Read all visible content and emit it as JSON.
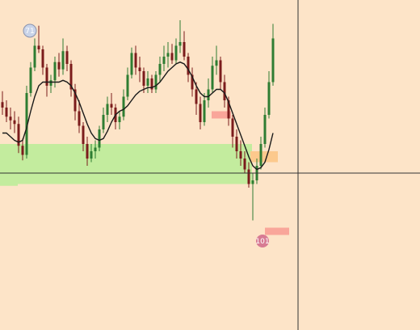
{
  "chart_data": {
    "type": "candlestick",
    "grid": false,
    "legend": "none",
    "price_range": [
      0,
      100
    ],
    "colors": {
      "background": "#fde4c8",
      "bull": "#2e7d32",
      "bear": "#7b1c1c",
      "moving_average": "#1a1a1a",
      "demand_zone": "#c3ec9e",
      "supply_zone": "#f9a69a",
      "pending_zone": "#fcc98d",
      "crosshair": "#333333",
      "marker": "#d77b93"
    },
    "candles": [
      {
        "o": 55,
        "h": 61,
        "l": 48,
        "c": 52
      },
      {
        "o": 52,
        "h": 56,
        "l": 44,
        "c": 47
      },
      {
        "o": 47,
        "h": 52,
        "l": 40,
        "c": 45
      },
      {
        "o": 45,
        "h": 50,
        "l": 38,
        "c": 43
      },
      {
        "o": 43,
        "h": 47,
        "l": 27,
        "c": 31
      },
      {
        "o": 31,
        "h": 35,
        "l": 23,
        "c": 26
      },
      {
        "o": 26,
        "h": 64,
        "l": 24,
        "c": 60
      },
      {
        "o": 60,
        "h": 77,
        "l": 58,
        "c": 74
      },
      {
        "o": 74,
        "h": 90,
        "l": 72,
        "c": 86
      },
      {
        "o": 86,
        "h": 97,
        "l": 82,
        "c": 84
      },
      {
        "o": 84,
        "h": 86,
        "l": 70,
        "c": 74
      },
      {
        "o": 74,
        "h": 76,
        "l": 58,
        "c": 64
      },
      {
        "o": 64,
        "h": 70,
        "l": 60,
        "c": 67
      },
      {
        "o": 67,
        "h": 80,
        "l": 63,
        "c": 77
      },
      {
        "o": 77,
        "h": 82,
        "l": 69,
        "c": 73
      },
      {
        "o": 73,
        "h": 90,
        "l": 70,
        "c": 83
      },
      {
        "o": 83,
        "h": 86,
        "l": 72,
        "c": 76
      },
      {
        "o": 76,
        "h": 78,
        "l": 58,
        "c": 62
      },
      {
        "o": 62,
        "h": 65,
        "l": 45,
        "c": 50
      },
      {
        "o": 50,
        "h": 56,
        "l": 38,
        "c": 42
      },
      {
        "o": 42,
        "h": 44,
        "l": 28,
        "c": 32
      },
      {
        "o": 32,
        "h": 36,
        "l": 20,
        "c": 24
      },
      {
        "o": 24,
        "h": 32,
        "l": 22,
        "c": 28
      },
      {
        "o": 28,
        "h": 34,
        "l": 24,
        "c": 30
      },
      {
        "o": 30,
        "h": 42,
        "l": 28,
        "c": 40
      },
      {
        "o": 40,
        "h": 52,
        "l": 38,
        "c": 48
      },
      {
        "o": 48,
        "h": 58,
        "l": 44,
        "c": 54
      },
      {
        "o": 54,
        "h": 60,
        "l": 48,
        "c": 52
      },
      {
        "o": 52,
        "h": 54,
        "l": 40,
        "c": 44
      },
      {
        "o": 44,
        "h": 50,
        "l": 40,
        "c": 47
      },
      {
        "o": 47,
        "h": 62,
        "l": 45,
        "c": 58
      },
      {
        "o": 58,
        "h": 74,
        "l": 56,
        "c": 70
      },
      {
        "o": 70,
        "h": 85,
        "l": 68,
        "c": 82
      },
      {
        "o": 82,
        "h": 86,
        "l": 70,
        "c": 74
      },
      {
        "o": 74,
        "h": 80,
        "l": 66,
        "c": 72
      },
      {
        "o": 72,
        "h": 74,
        "l": 60,
        "c": 64
      },
      {
        "o": 64,
        "h": 72,
        "l": 60,
        "c": 68
      },
      {
        "o": 68,
        "h": 70,
        "l": 60,
        "c": 62
      },
      {
        "o": 62,
        "h": 72,
        "l": 60,
        "c": 70
      },
      {
        "o": 70,
        "h": 80,
        "l": 66,
        "c": 76
      },
      {
        "o": 76,
        "h": 86,
        "l": 72,
        "c": 80
      },
      {
        "o": 80,
        "h": 88,
        "l": 74,
        "c": 82
      },
      {
        "o": 82,
        "h": 87,
        "l": 76,
        "c": 78
      },
      {
        "o": 78,
        "h": 90,
        "l": 76,
        "c": 86
      },
      {
        "o": 86,
        "h": 100,
        "l": 82,
        "c": 88
      },
      {
        "o": 88,
        "h": 94,
        "l": 78,
        "c": 80
      },
      {
        "o": 80,
        "h": 82,
        "l": 66,
        "c": 70
      },
      {
        "o": 70,
        "h": 74,
        "l": 58,
        "c": 62
      },
      {
        "o": 62,
        "h": 66,
        "l": 48,
        "c": 54
      },
      {
        "o": 54,
        "h": 58,
        "l": 40,
        "c": 44
      },
      {
        "o": 44,
        "h": 60,
        "l": 42,
        "c": 56
      },
      {
        "o": 56,
        "h": 68,
        "l": 52,
        "c": 62
      },
      {
        "o": 62,
        "h": 80,
        "l": 60,
        "c": 75
      },
      {
        "o": 75,
        "h": 86,
        "l": 70,
        "c": 78
      },
      {
        "o": 78,
        "h": 80,
        "l": 62,
        "c": 66
      },
      {
        "o": 66,
        "h": 70,
        "l": 52,
        "c": 56
      },
      {
        "o": 56,
        "h": 58,
        "l": 42,
        "c": 46
      },
      {
        "o": 46,
        "h": 48,
        "l": 30,
        "c": 36
      },
      {
        "o": 36,
        "h": 40,
        "l": 24,
        "c": 28
      },
      {
        "o": 28,
        "h": 34,
        "l": 20,
        "c": 24
      },
      {
        "o": 24,
        "h": 28,
        "l": 16,
        "c": 18
      },
      {
        "o": 18,
        "h": 22,
        "l": 8,
        "c": 10
      },
      {
        "o": 10,
        "h": 16,
        "l": -10,
        "c": 12
      },
      {
        "o": 12,
        "h": 24,
        "l": 10,
        "c": 20
      },
      {
        "o": 20,
        "h": 36,
        "l": 18,
        "c": 32
      },
      {
        "o": 32,
        "h": 52,
        "l": 30,
        "c": 48
      },
      {
        "o": 48,
        "h": 72,
        "l": 46,
        "c": 66
      },
      {
        "o": 66,
        "h": 98,
        "l": 64,
        "c": 90
      }
    ],
    "moving_average": [
      38,
      38,
      36,
      34,
      33,
      34,
      41,
      50,
      58,
      64,
      66,
      66,
      66,
      66,
      66,
      67,
      66,
      64,
      60,
      55,
      49,
      43,
      38,
      35,
      34,
      35,
      39,
      44,
      48,
      50,
      51,
      53,
      56,
      59,
      61,
      62,
      63,
      63,
      64,
      66,
      69,
      72,
      74,
      76,
      77,
      76,
      73,
      69,
      64,
      60,
      58,
      58,
      60,
      62,
      62,
      60,
      55,
      49,
      43,
      37,
      31,
      25,
      20,
      18,
      19,
      22,
      29,
      38
    ],
    "zones": [
      {
        "kind": "demand",
        "price_top": 32,
        "price_bottom": 10
      },
      {
        "kind": "demand",
        "price_top": 16,
        "price_bottom": 9
      },
      {
        "kind": "supply",
        "price_top": 50,
        "price_bottom": 46
      },
      {
        "kind": "pending",
        "price_top": 28,
        "price_bottom": 22
      },
      {
        "kind": "supply",
        "price_top": -14,
        "price_bottom": -18
      }
    ],
    "crosshair_price": 16,
    "markers": [
      {
        "label": "71",
        "position": "top-left"
      },
      {
        "label": "101",
        "position": "bottom"
      }
    ]
  }
}
